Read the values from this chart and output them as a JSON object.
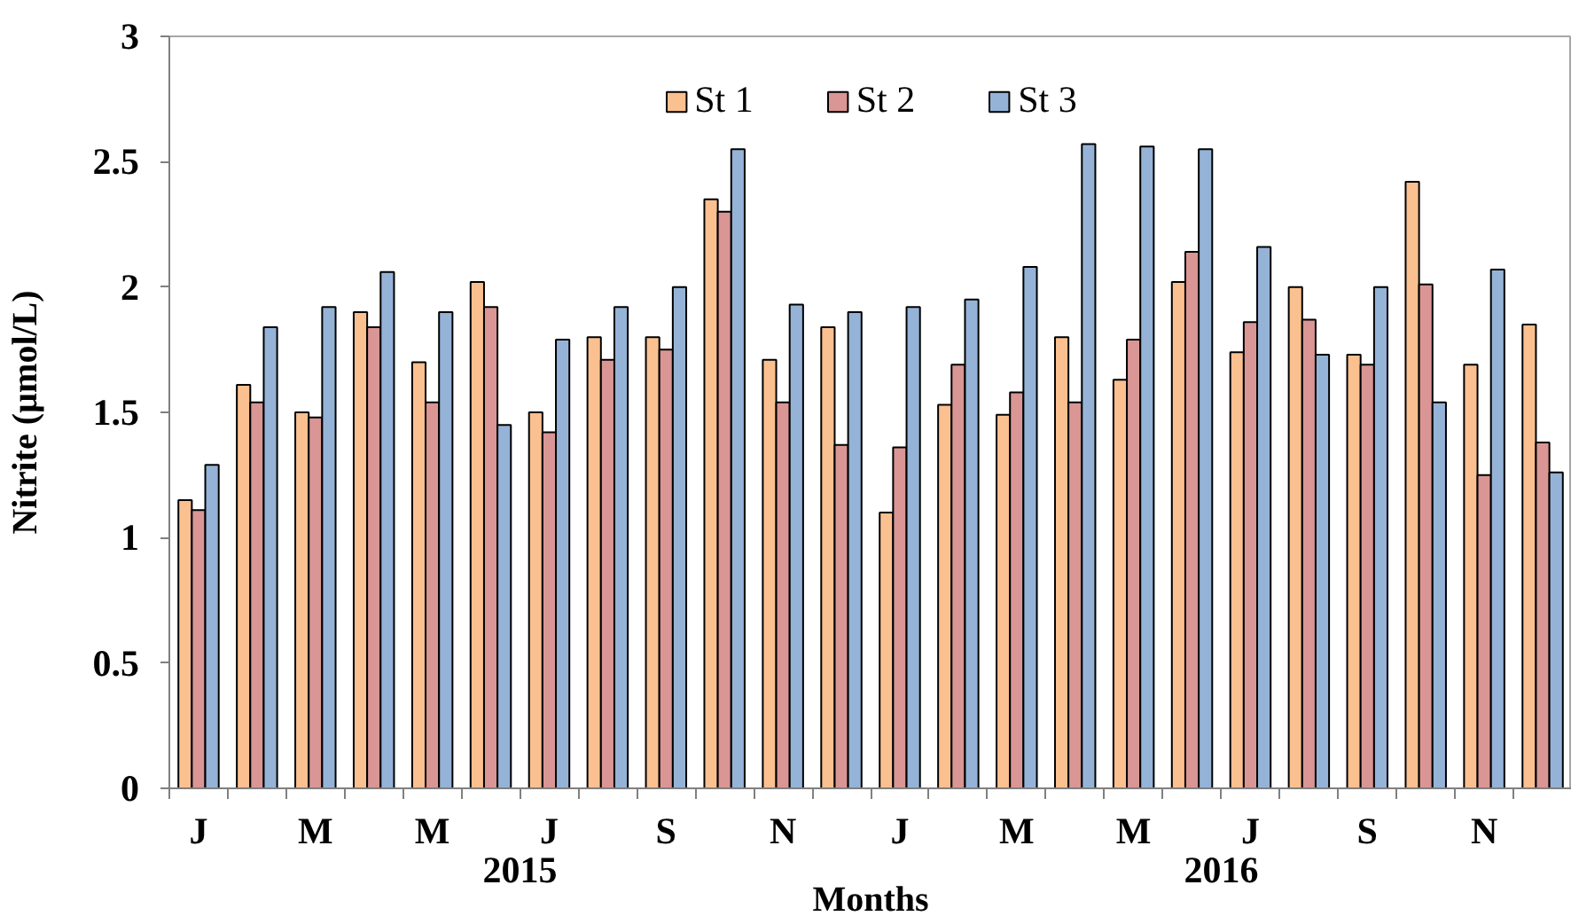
{
  "chart_data": {
    "type": "bar",
    "xlabel": "Months",
    "ylabel": "Nitrite (µmol/L)",
    "categories": [
      "J",
      null,
      "M",
      null,
      "M",
      null,
      "J",
      null,
      "S",
      null,
      "N",
      null,
      "J",
      null,
      "M",
      null,
      "M",
      null,
      "J",
      null,
      "S",
      null,
      "N",
      null
    ],
    "series": [
      {
        "name": "St 1",
        "color": "#fac090",
        "values": [
          1.15,
          1.61,
          1.5,
          1.9,
          1.7,
          2.02,
          1.5,
          1.8,
          1.8,
          2.35,
          1.71,
          1.84,
          1.1,
          1.53,
          1.49,
          1.8,
          1.63,
          2.02,
          1.74,
          2.0,
          1.73,
          2.42,
          1.69,
          1.85
        ]
      },
      {
        "name": "St 2",
        "color": "#d99694",
        "values": [
          1.11,
          1.54,
          1.48,
          1.84,
          1.54,
          1.92,
          1.42,
          1.71,
          1.75,
          2.3,
          1.54,
          1.37,
          1.36,
          1.69,
          1.58,
          1.54,
          1.79,
          2.14,
          1.86,
          1.87,
          1.69,
          2.01,
          1.25,
          1.38
        ]
      },
      {
        "name": "St 3",
        "color": "#95b3d7",
        "values": [
          1.29,
          1.84,
          1.92,
          2.06,
          1.9,
          1.45,
          1.79,
          1.92,
          2.0,
          2.55,
          1.93,
          1.9,
          1.92,
          1.95,
          2.08,
          2.57,
          2.56,
          2.55,
          2.16,
          1.73,
          2.0,
          1.54,
          2.07,
          1.26
        ]
      }
    ],
    "ylim": [
      0,
      3
    ],
    "yticks": [
      0,
      0.5,
      1,
      1.5,
      2,
      2.5,
      3
    ],
    "legend": "top",
    "grid": false,
    "annotations": [
      "2015",
      "2016"
    ]
  }
}
